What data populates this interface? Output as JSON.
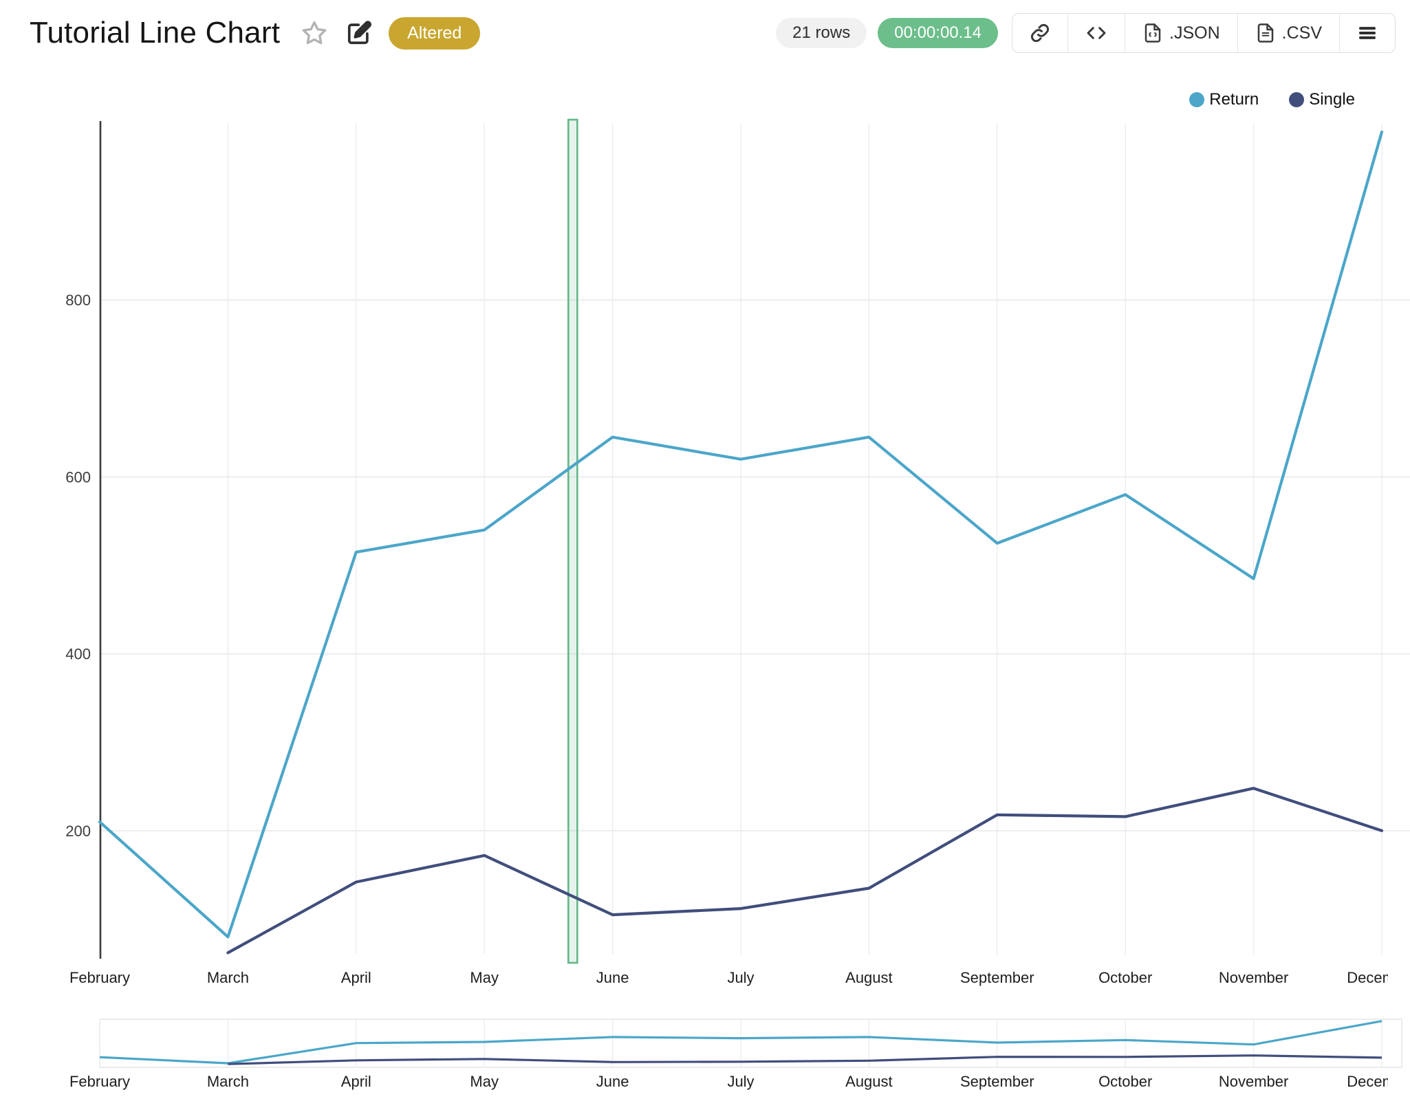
{
  "header": {
    "title": "Tutorial Line Chart",
    "status_badge": "Altered",
    "row_count": "21 rows",
    "elapsed_time": "00:00:00.14",
    "export_json_label": ".JSON",
    "export_csv_label": ".CSV"
  },
  "colors": {
    "badge_bg": "#C9A62F",
    "time_pill_bg": "#6CBE8A",
    "rows_pill_bg": "#F1F1F1",
    "axis_line": "#3C3C3C",
    "grid_line": "#EAEAEA",
    "band_border": "#63B786",
    "band_fill": "rgba(99,183,134,0.16)"
  },
  "chart_data": {
    "type": "line",
    "title": "Tutorial Line Chart",
    "categories": [
      "February",
      "March",
      "April",
      "May",
      "June",
      "July",
      "August",
      "September",
      "October",
      "November",
      "December"
    ],
    "series": [
      {
        "name": "Return",
        "color": "#4BA6C9",
        "values": [
          210,
          80,
          515,
          540,
          645,
          620,
          645,
          525,
          580,
          485,
          990
        ]
      },
      {
        "name": "Single",
        "color": "#404E7C",
        "values": [
          null,
          62,
          142,
          172,
          105,
          112,
          135,
          218,
          216,
          248,
          200
        ]
      }
    ],
    "ylim": [
      60,
      1000
    ],
    "yticks": [
      200,
      400,
      600,
      800
    ],
    "grid": true,
    "legend_position": "top-right",
    "annotation_band": {
      "between": [
        "May",
        "June"
      ],
      "fraction": 0.69
    },
    "rangeslider": {
      "enabled": true,
      "ylim": [
        50,
        1000
      ]
    }
  }
}
